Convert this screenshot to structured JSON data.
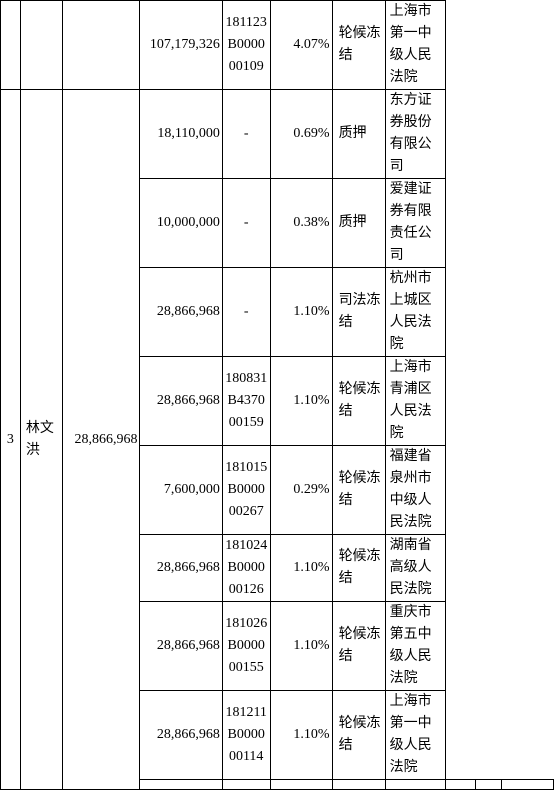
{
  "rows": [
    {
      "amount": "107,179,326",
      "ref": "181123B000000109",
      "pct": "4.07%",
      "status": "轮候冻结",
      "agency": "上海市第一中级人民法院"
    },
    {
      "amount": "18,110,000",
      "ref": "-",
      "pct": "0.69%",
      "status": "质押",
      "agency": "东方证券股份有限公司"
    },
    {
      "amount": "10,000,000",
      "ref": "-",
      "pct": "0.38%",
      "status": "质押",
      "agency": "爱建证券有限责任公司"
    },
    {
      "amount": "28,866,968",
      "ref": "-",
      "pct": "1.10%",
      "status": "司法冻结",
      "agency": "杭州市上城区人民法院"
    },
    {
      "amount": "28,866,968",
      "ref": "180831B437000159",
      "pct": "1.10%",
      "status": "轮候冻结",
      "agency": "上海市青浦区人民法院"
    },
    {
      "amount": "7,600,000",
      "ref": "181015B000000267",
      "pct": "0.29%",
      "status": "轮候冻结",
      "agency": "福建省泉州市中级人民法院"
    },
    {
      "amount": "28,866,968",
      "ref": "181024B000000126",
      "pct": "1.10%",
      "status": "轮候冻结",
      "agency": "湖南省高级人民法院"
    },
    {
      "amount": "28,866,968",
      "ref": "181026B000000155",
      "pct": "1.10%",
      "status": "轮候冻结",
      "agency": "重庆市第五中级人民法院"
    },
    {
      "amount": "28,866,968",
      "ref": "181211B000000114",
      "pct": "1.10%",
      "status": "轮候冻结",
      "agency": "上海市第一中级人民法院"
    }
  ],
  "holder": {
    "index": "3",
    "name": "林文洪",
    "total": "28,866,968"
  }
}
